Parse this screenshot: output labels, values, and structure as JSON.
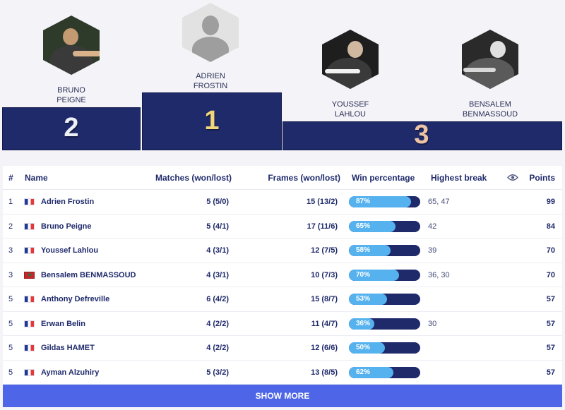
{
  "podium": {
    "first": {
      "rank": "1",
      "name_line1": "ADRIEN",
      "name_line2": "FROSTIN"
    },
    "second": {
      "rank": "2",
      "name_line1": "BRUNO",
      "name_line2": "PEIGNE"
    },
    "third_a": {
      "name_line1": "YOUSSEF",
      "name_line2": "LAHLOU"
    },
    "third_b": {
      "name_line1": "BENSALEM",
      "name_line2": "BENMASSOUD"
    },
    "third_rank": "3"
  },
  "table": {
    "headers": {
      "rank": "#",
      "name": "Name",
      "matches": "Matches (won/lost)",
      "frames": "Frames (won/lost)",
      "win": "Win percentage",
      "break": "Highest break",
      "points": "Points"
    },
    "rows": [
      {
        "rank": "1",
        "flag": "fr",
        "name": "Adrien Frostin",
        "matches": "5 (5/0)",
        "frames": "15 (13/2)",
        "win": "87%",
        "win_value": 87,
        "break": "65, 47",
        "points": "99"
      },
      {
        "rank": "2",
        "flag": "fr",
        "name": "Bruno Peigne",
        "matches": "5 (4/1)",
        "frames": "17 (11/6)",
        "win": "65%",
        "win_value": 65,
        "break": "42",
        "points": "84"
      },
      {
        "rank": "3",
        "flag": "fr",
        "name": "Youssef Lahlou",
        "matches": "4 (3/1)",
        "frames": "12 (7/5)",
        "win": "58%",
        "win_value": 58,
        "break": "39",
        "points": "70"
      },
      {
        "rank": "3",
        "flag": "ma",
        "name": "Bensalem BENMASSOUD",
        "matches": "4 (3/1)",
        "frames": "10 (7/3)",
        "win": "70%",
        "win_value": 70,
        "break": "36, 30",
        "points": "70"
      },
      {
        "rank": "5",
        "flag": "fr",
        "name": "Anthony Defreville",
        "matches": "6 (4/2)",
        "frames": "15 (8/7)",
        "win": "53%",
        "win_value": 53,
        "break": "",
        "points": "57"
      },
      {
        "rank": "5",
        "flag": "fr",
        "name": "Erwan Belin",
        "matches": "4 (2/2)",
        "frames": "11 (4/7)",
        "win": "36%",
        "win_value": 36,
        "break": "30",
        "points": "57"
      },
      {
        "rank": "5",
        "flag": "fr",
        "name": "Gildas HAMET",
        "matches": "4 (2/2)",
        "frames": "12 (6/6)",
        "win": "50%",
        "win_value": 50,
        "break": "",
        "points": "57"
      },
      {
        "rank": "5",
        "flag": "fr",
        "name": "Ayman Alzuhiry",
        "matches": "5 (3/2)",
        "frames": "13 (8/5)",
        "win": "62%",
        "win_value": 62,
        "break": "",
        "points": "57"
      }
    ]
  },
  "show_more_label": "SHOW MORE",
  "icons": {
    "visibility": "eye-icon"
  },
  "colors": {
    "navy": "#1f2a6b",
    "bar_fill": "#55b2ee",
    "button": "#4d65e6",
    "gold": "#f2d67a",
    "bronze": "#ecc4a4"
  }
}
